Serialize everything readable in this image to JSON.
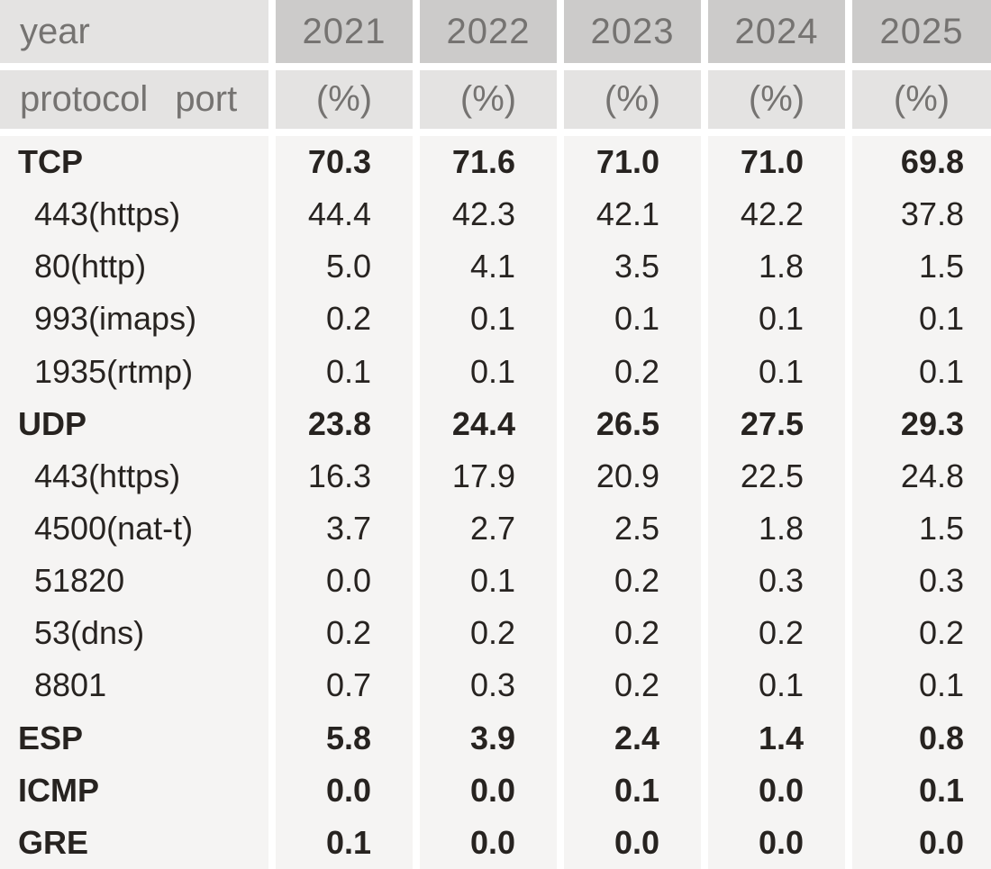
{
  "header": {
    "corner_label": "year",
    "protocol_label": "protocol",
    "port_label": "port",
    "unit_label": "(%)"
  },
  "colors": {
    "year_cell_bg": "#cccbca",
    "header_cell_bg": "#e4e3e2",
    "body_cell_bg": "#f5f4f3",
    "header_text": "#757371",
    "body_text": "#272320"
  },
  "chart_data": {
    "type": "table",
    "unit": "(%)",
    "years": [
      "2021",
      "2022",
      "2023",
      "2024",
      "2025"
    ],
    "rows": [
      {
        "label": "TCP",
        "kind": "protocol",
        "values": [
          70.3,
          71.6,
          71.0,
          71.0,
          69.8
        ]
      },
      {
        "label": "443(https)",
        "kind": "port",
        "values": [
          44.4,
          42.3,
          42.1,
          42.2,
          37.8
        ]
      },
      {
        "label": "80(http)",
        "kind": "port",
        "values": [
          5.0,
          4.1,
          3.5,
          1.8,
          1.5
        ]
      },
      {
        "label": "993(imaps)",
        "kind": "port",
        "values": [
          0.2,
          0.1,
          0.1,
          0.1,
          0.1
        ]
      },
      {
        "label": "1935(rtmp)",
        "kind": "port",
        "values": [
          0.1,
          0.1,
          0.2,
          0.1,
          0.1
        ]
      },
      {
        "label": "UDP",
        "kind": "protocol",
        "values": [
          23.8,
          24.4,
          26.5,
          27.5,
          29.3
        ]
      },
      {
        "label": "443(https)",
        "kind": "port",
        "values": [
          16.3,
          17.9,
          20.9,
          22.5,
          24.8
        ]
      },
      {
        "label": "4500(nat-t)",
        "kind": "port",
        "values": [
          3.7,
          2.7,
          2.5,
          1.8,
          1.5
        ]
      },
      {
        "label": "51820",
        "kind": "port",
        "values": [
          0.0,
          0.1,
          0.2,
          0.3,
          0.3
        ]
      },
      {
        "label": "53(dns)",
        "kind": "port",
        "values": [
          0.2,
          0.2,
          0.2,
          0.2,
          0.2
        ]
      },
      {
        "label": "8801",
        "kind": "port",
        "values": [
          0.7,
          0.3,
          0.2,
          0.1,
          0.1
        ]
      },
      {
        "label": "ESP",
        "kind": "protocol",
        "values": [
          5.8,
          3.9,
          2.4,
          1.4,
          0.8
        ]
      },
      {
        "label": "ICMP",
        "kind": "protocol",
        "values": [
          0.0,
          0.0,
          0.1,
          0.0,
          0.1
        ]
      },
      {
        "label": "GRE",
        "kind": "protocol",
        "values": [
          0.1,
          0.0,
          0.0,
          0.0,
          0.0
        ]
      }
    ]
  }
}
